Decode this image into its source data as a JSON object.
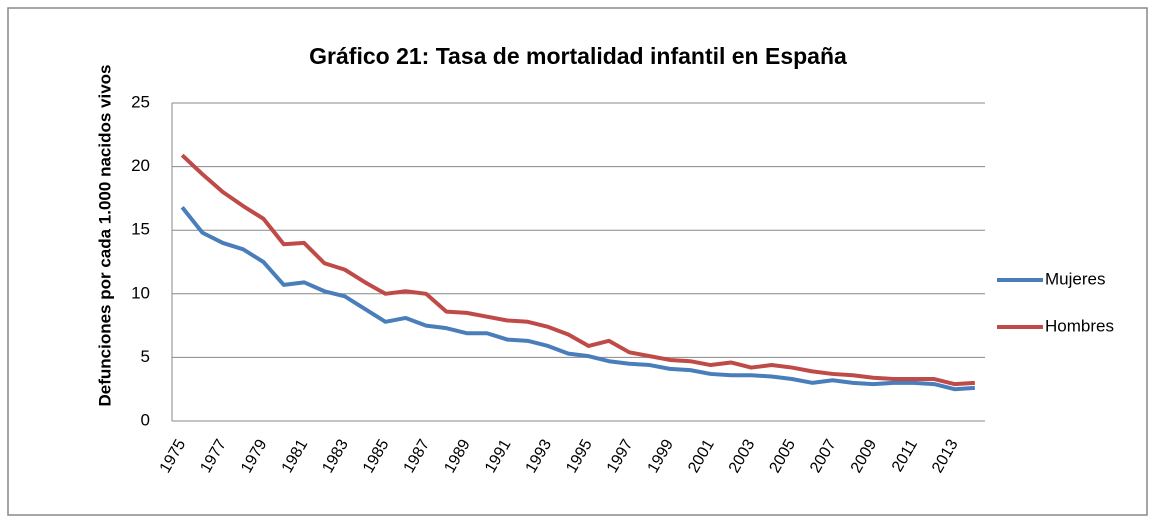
{
  "chart_data": {
    "type": "line",
    "title": "Gráfico 21: Tasa de mortalidad infantil en España",
    "y_label": "Defunciones por cada 1.000 nacidos vivos",
    "categories": [
      "1975",
      null,
      "1977",
      null,
      "1979",
      null,
      "1981",
      null,
      "1983",
      null,
      "1985",
      null,
      "1987",
      null,
      "1989",
      null,
      "1991",
      null,
      "1993",
      null,
      "1995",
      null,
      "1997",
      null,
      "1999",
      null,
      "2001",
      null,
      "2003",
      null,
      "2005",
      null,
      "2007",
      null,
      "2009",
      null,
      "2011",
      null,
      "2013",
      null
    ],
    "series": [
      {
        "name": "Mujeres",
        "color": "#4a7ebb",
        "values": [
          16.8,
          14.8,
          14.0,
          13.5,
          12.5,
          10.7,
          10.9,
          10.2,
          9.8,
          8.8,
          7.8,
          8.1,
          7.5,
          7.3,
          6.9,
          6.9,
          6.4,
          6.3,
          5.9,
          5.3,
          5.1,
          4.7,
          4.5,
          4.4,
          4.1,
          4.0,
          3.7,
          3.6,
          3.6,
          3.5,
          3.3,
          3.0,
          3.2,
          3.0,
          2.9,
          3.0,
          3.0,
          2.9,
          2.5,
          2.6
        ]
      },
      {
        "name": "Hombres",
        "color": "#be4b48",
        "values": [
          20.9,
          19.4,
          18.0,
          16.9,
          15.9,
          13.9,
          14.0,
          12.4,
          11.9,
          10.9,
          10.0,
          10.2,
          10.0,
          8.6,
          8.5,
          8.2,
          7.9,
          7.8,
          7.4,
          6.8,
          5.9,
          6.3,
          5.4,
          5.1,
          4.8,
          4.7,
          4.4,
          4.6,
          4.2,
          4.4,
          4.2,
          3.9,
          3.7,
          3.6,
          3.4,
          3.3,
          3.3,
          3.3,
          2.9,
          3.0
        ]
      }
    ],
    "ylim": [
      0,
      25
    ],
    "yticks": [
      0,
      5,
      10,
      15,
      20,
      25
    ],
    "grid": true,
    "legend": "right"
  }
}
